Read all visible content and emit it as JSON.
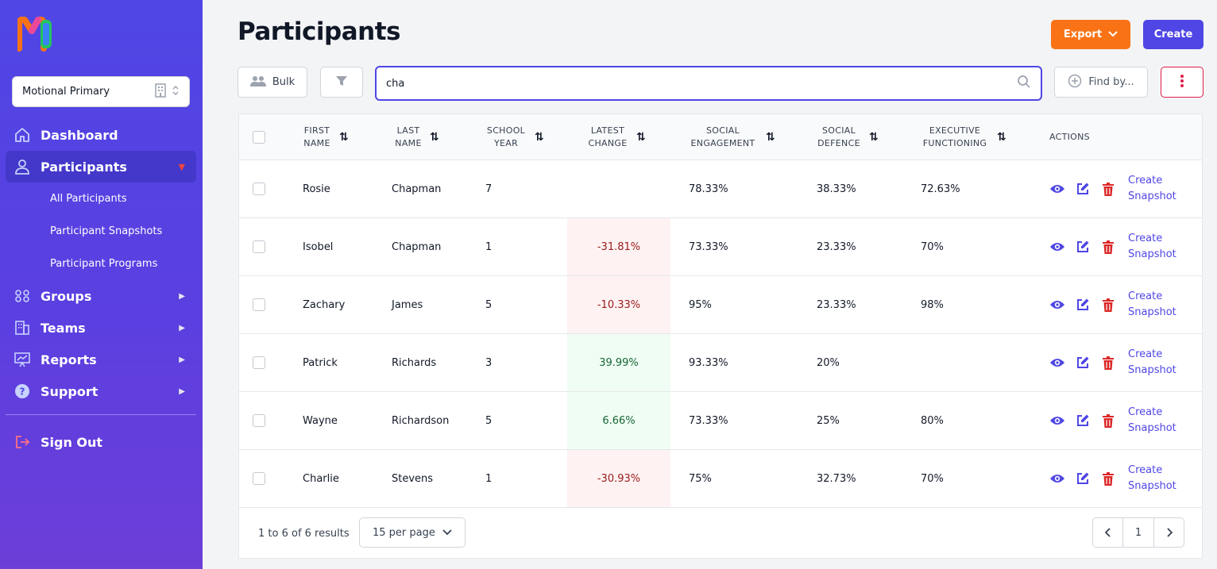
{
  "sidebar": {
    "logo_text": "Motional",
    "school_select": "Motional Primary",
    "nav": {
      "dashboard": "Dashboard",
      "participants": "Participants",
      "sub": [
        "All Participants",
        "Participant Snapshots",
        "Participant Programs"
      ],
      "groups": "Groups",
      "teams": "Teams",
      "reports": "Reports",
      "support": "Support",
      "signout": "Sign Out"
    }
  },
  "header": {
    "title": "Participants",
    "export_label": "Export",
    "create_label": "Create"
  },
  "toolbar": {
    "bulk_label": "Bulk",
    "search_value": "cha",
    "findby_label": "Find by..."
  },
  "table": {
    "headers": {
      "first_name": "FIRST NAME",
      "last_name": "LAST NAME",
      "school_year": "SCHOOL YEAR",
      "latest_change": "LATEST CHANGE",
      "social_engagement": "SOCIAL ENGAGEMENT",
      "social_defence": "SOCIAL DEFENCE",
      "executive_functioning": "EXECUTIVE FUNCTIONING",
      "actions": "ACTIONS"
    },
    "snapshot_link": "Create Snapshot",
    "rows": [
      {
        "first": "Rosie",
        "last": "Chapman",
        "year": "7",
        "change": "",
        "trend": "none",
        "engagement": "78.33%",
        "defence": "38.33%",
        "functioning": "72.63%"
      },
      {
        "first": "Isobel",
        "last": "Chapman",
        "year": "1",
        "change": "-31.81%",
        "trend": "neg",
        "engagement": "73.33%",
        "defence": "23.33%",
        "functioning": "70%"
      },
      {
        "first": "Zachary",
        "last": "James",
        "year": "5",
        "change": "-10.33%",
        "trend": "neg",
        "engagement": "95%",
        "defence": "23.33%",
        "functioning": "98%"
      },
      {
        "first": "Patrick",
        "last": "Richards",
        "year": "3",
        "change": "39.99%",
        "trend": "pos",
        "engagement": "93.33%",
        "defence": "20%",
        "functioning": ""
      },
      {
        "first": "Wayne",
        "last": "Richardson",
        "year": "5",
        "change": "6.66%",
        "trend": "pos",
        "engagement": "73.33%",
        "defence": "25%",
        "functioning": "80%"
      },
      {
        "first": "Charlie",
        "last": "Stevens",
        "year": "1",
        "change": "-30.93%",
        "trend": "neg",
        "engagement": "75%",
        "defence": "32.73%",
        "functioning": "70%"
      }
    ]
  },
  "footer": {
    "results_text": "1 to 6 of 6 results",
    "per_page": "15 per page",
    "current_page": "1"
  },
  "colors": {
    "accent": "#4f46e5",
    "export": "#f97316",
    "danger": "#dc2626",
    "negative_bg": "#fef2f2",
    "positive_bg": "#f0fdf4"
  }
}
